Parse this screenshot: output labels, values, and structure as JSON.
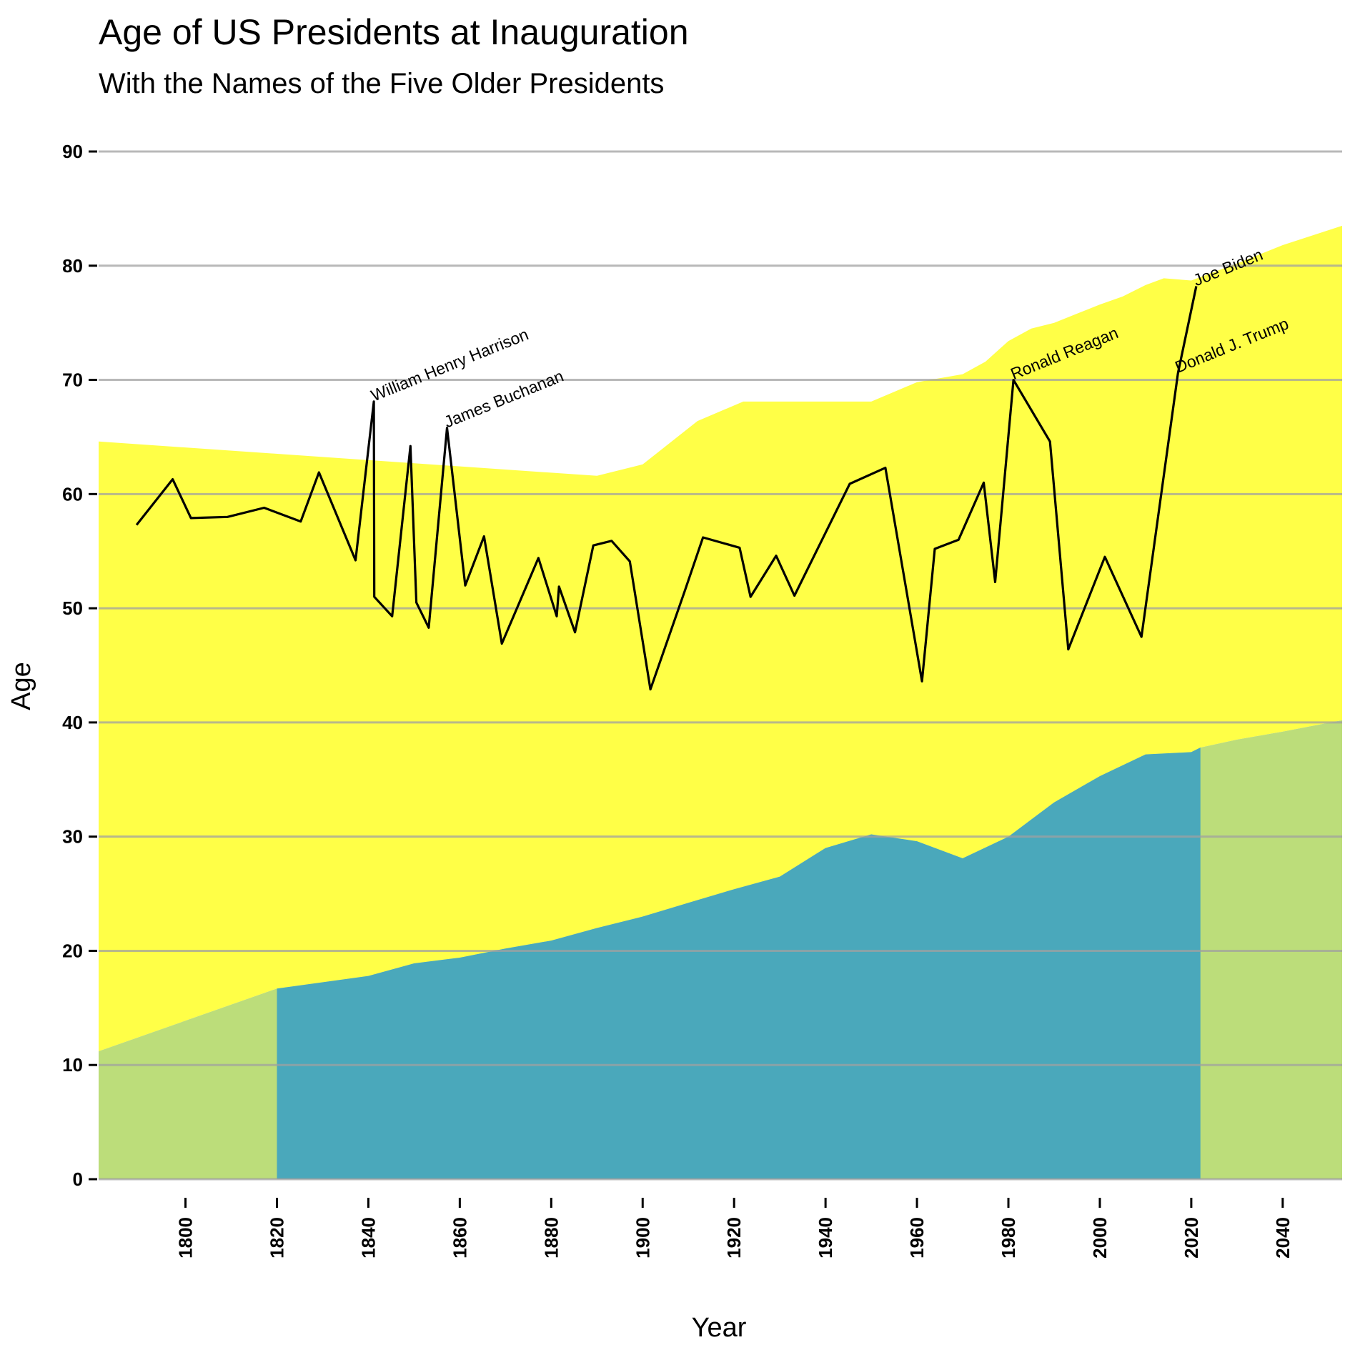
{
  "chart_data": {
    "type": "line",
    "title": "Age of US Presidents at Inauguration",
    "subtitle": "With the Names of the Five Older Presidents",
    "xlabel": "Year",
    "ylabel": "Age",
    "xlim": [
      1781,
      2053
    ],
    "ylim": [
      0,
      90
    ],
    "x_ticks": [
      1800,
      1820,
      1840,
      1860,
      1880,
      1900,
      1920,
      1940,
      1960,
      1980,
      2000,
      2020,
      2040
    ],
    "y_ticks": [
      0,
      10,
      20,
      30,
      40,
      50,
      60,
      70,
      80,
      90
    ],
    "grid": "horizontal",
    "legend": "none",
    "colors": {
      "upper_band": "#ffff00",
      "lower_band": "#3aa0c4",
      "band_outside": "#b5d96b",
      "line": "#000000",
      "grid": "#a0a0a0"
    },
    "upper_band": {
      "x": [
        1781,
        1890,
        1900,
        1912,
        1922,
        1930,
        1940,
        1950,
        1960,
        1970,
        1975,
        1980,
        1985,
        1990,
        1995,
        2000,
        2005,
        2010,
        2014,
        2020,
        2030,
        2040,
        2053
      ],
      "y": [
        64.6,
        61.6,
        62.6,
        66.4,
        68.1,
        68.1,
        68.1,
        68.1,
        69.8,
        70.5,
        71.6,
        73.4,
        74.5,
        75.0,
        75.8,
        76.6,
        77.3,
        78.3,
        78.9,
        78.7,
        80.2,
        81.8,
        83.5
      ]
    },
    "lower_band": {
      "x": [
        1781,
        1820,
        1840,
        1850,
        1860,
        1870,
        1880,
        1890,
        1900,
        1910,
        1920,
        1930,
        1940,
        1950,
        1960,
        1970,
        1980,
        1990,
        2000,
        2010,
        2020,
        2022,
        2030,
        2040,
        2053
      ],
      "y": [
        11.2,
        16.7,
        17.8,
        18.9,
        19.4,
        20.2,
        20.9,
        22.0,
        23.0,
        24.2,
        25.4,
        26.5,
        29.0,
        30.2,
        29.6,
        28.1,
        30.0,
        33.0,
        35.3,
        37.2,
        37.4,
        37.8,
        38.5,
        39.2,
        40.2
      ]
    },
    "lower_band_highlight": {
      "x_from": 1820,
      "x_to": 2022
    },
    "series": [
      {
        "x": [
          1789.3,
          1797.2,
          1801.2,
          1809.2,
          1817.2,
          1825.2,
          1829.2,
          1837.2,
          1841.2,
          1841.3,
          1845.2,
          1849.2,
          1850.5,
          1853.2,
          1857.2,
          1861.2,
          1865.3,
          1869.2,
          1877.2,
          1881.2,
          1881.7,
          1885.2,
          1889.2,
          1893.2,
          1897.2,
          1901.7,
          1909.2,
          1913.2,
          1921.2,
          1923.6,
          1929.2,
          1933.2,
          1945.3,
          1953.1,
          1961.1,
          1963.9,
          1969.1,
          1974.6,
          1977.1,
          1981.1,
          1989.1,
          1993.1,
          2001.1,
          2009.1,
          2017.1,
          2021.1
        ],
        "y": [
          57.3,
          61.3,
          57.9,
          58.0,
          58.8,
          57.6,
          61.9,
          54.2,
          68.1,
          51.0,
          49.3,
          64.2,
          50.5,
          48.3,
          65.8,
          52.0,
          56.3,
          46.9,
          54.4,
          49.3,
          51.9,
          47.9,
          55.5,
          55.9,
          54.1,
          42.9,
          51.5,
          56.2,
          55.3,
          51.0,
          54.6,
          51.1,
          60.9,
          62.3,
          43.6,
          55.2,
          56.0,
          61.0,
          52.3,
          70.0,
          64.6,
          46.4,
          54.5,
          47.5,
          70.6,
          78.2
        ]
      }
    ],
    "annotations": [
      {
        "label": "William Henry Harrison",
        "x": 1841.2,
        "y": 68.1
      },
      {
        "label": "James Buchanan",
        "x": 1857.2,
        "y": 65.8
      },
      {
        "label": "Ronald Reagan",
        "x": 1981.1,
        "y": 70.0
      },
      {
        "label": "Donald J. Trump",
        "x": 2017.1,
        "y": 70.6
      },
      {
        "label": "Joe Biden",
        "x": 2021.1,
        "y": 78.2
      }
    ]
  }
}
